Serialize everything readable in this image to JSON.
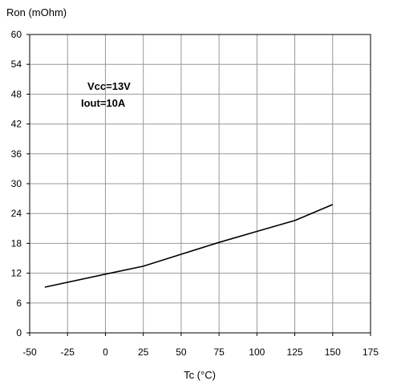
{
  "chart_data": {
    "type": "line",
    "ylabel": "Ron (mOhm)",
    "xlabel": "Tc (°C)",
    "xlim": [
      -50,
      175
    ],
    "ylim": [
      0,
      60
    ],
    "x_ticks": [
      -50,
      -25,
      0,
      25,
      50,
      75,
      100,
      125,
      150,
      175
    ],
    "y_ticks": [
      0,
      6,
      12,
      18,
      24,
      30,
      36,
      42,
      48,
      54,
      60
    ],
    "grid": true,
    "annotations": [
      "Vcc=13V",
      "Iout=10A"
    ],
    "series": [
      {
        "x": [
          -40,
          0,
          25,
          50,
          75,
          100,
          125,
          150
        ],
        "y": [
          9.2,
          11.8,
          13.4,
          15.8,
          18.2,
          20.4,
          22.6,
          25.8
        ],
        "color": "#000000"
      }
    ]
  }
}
